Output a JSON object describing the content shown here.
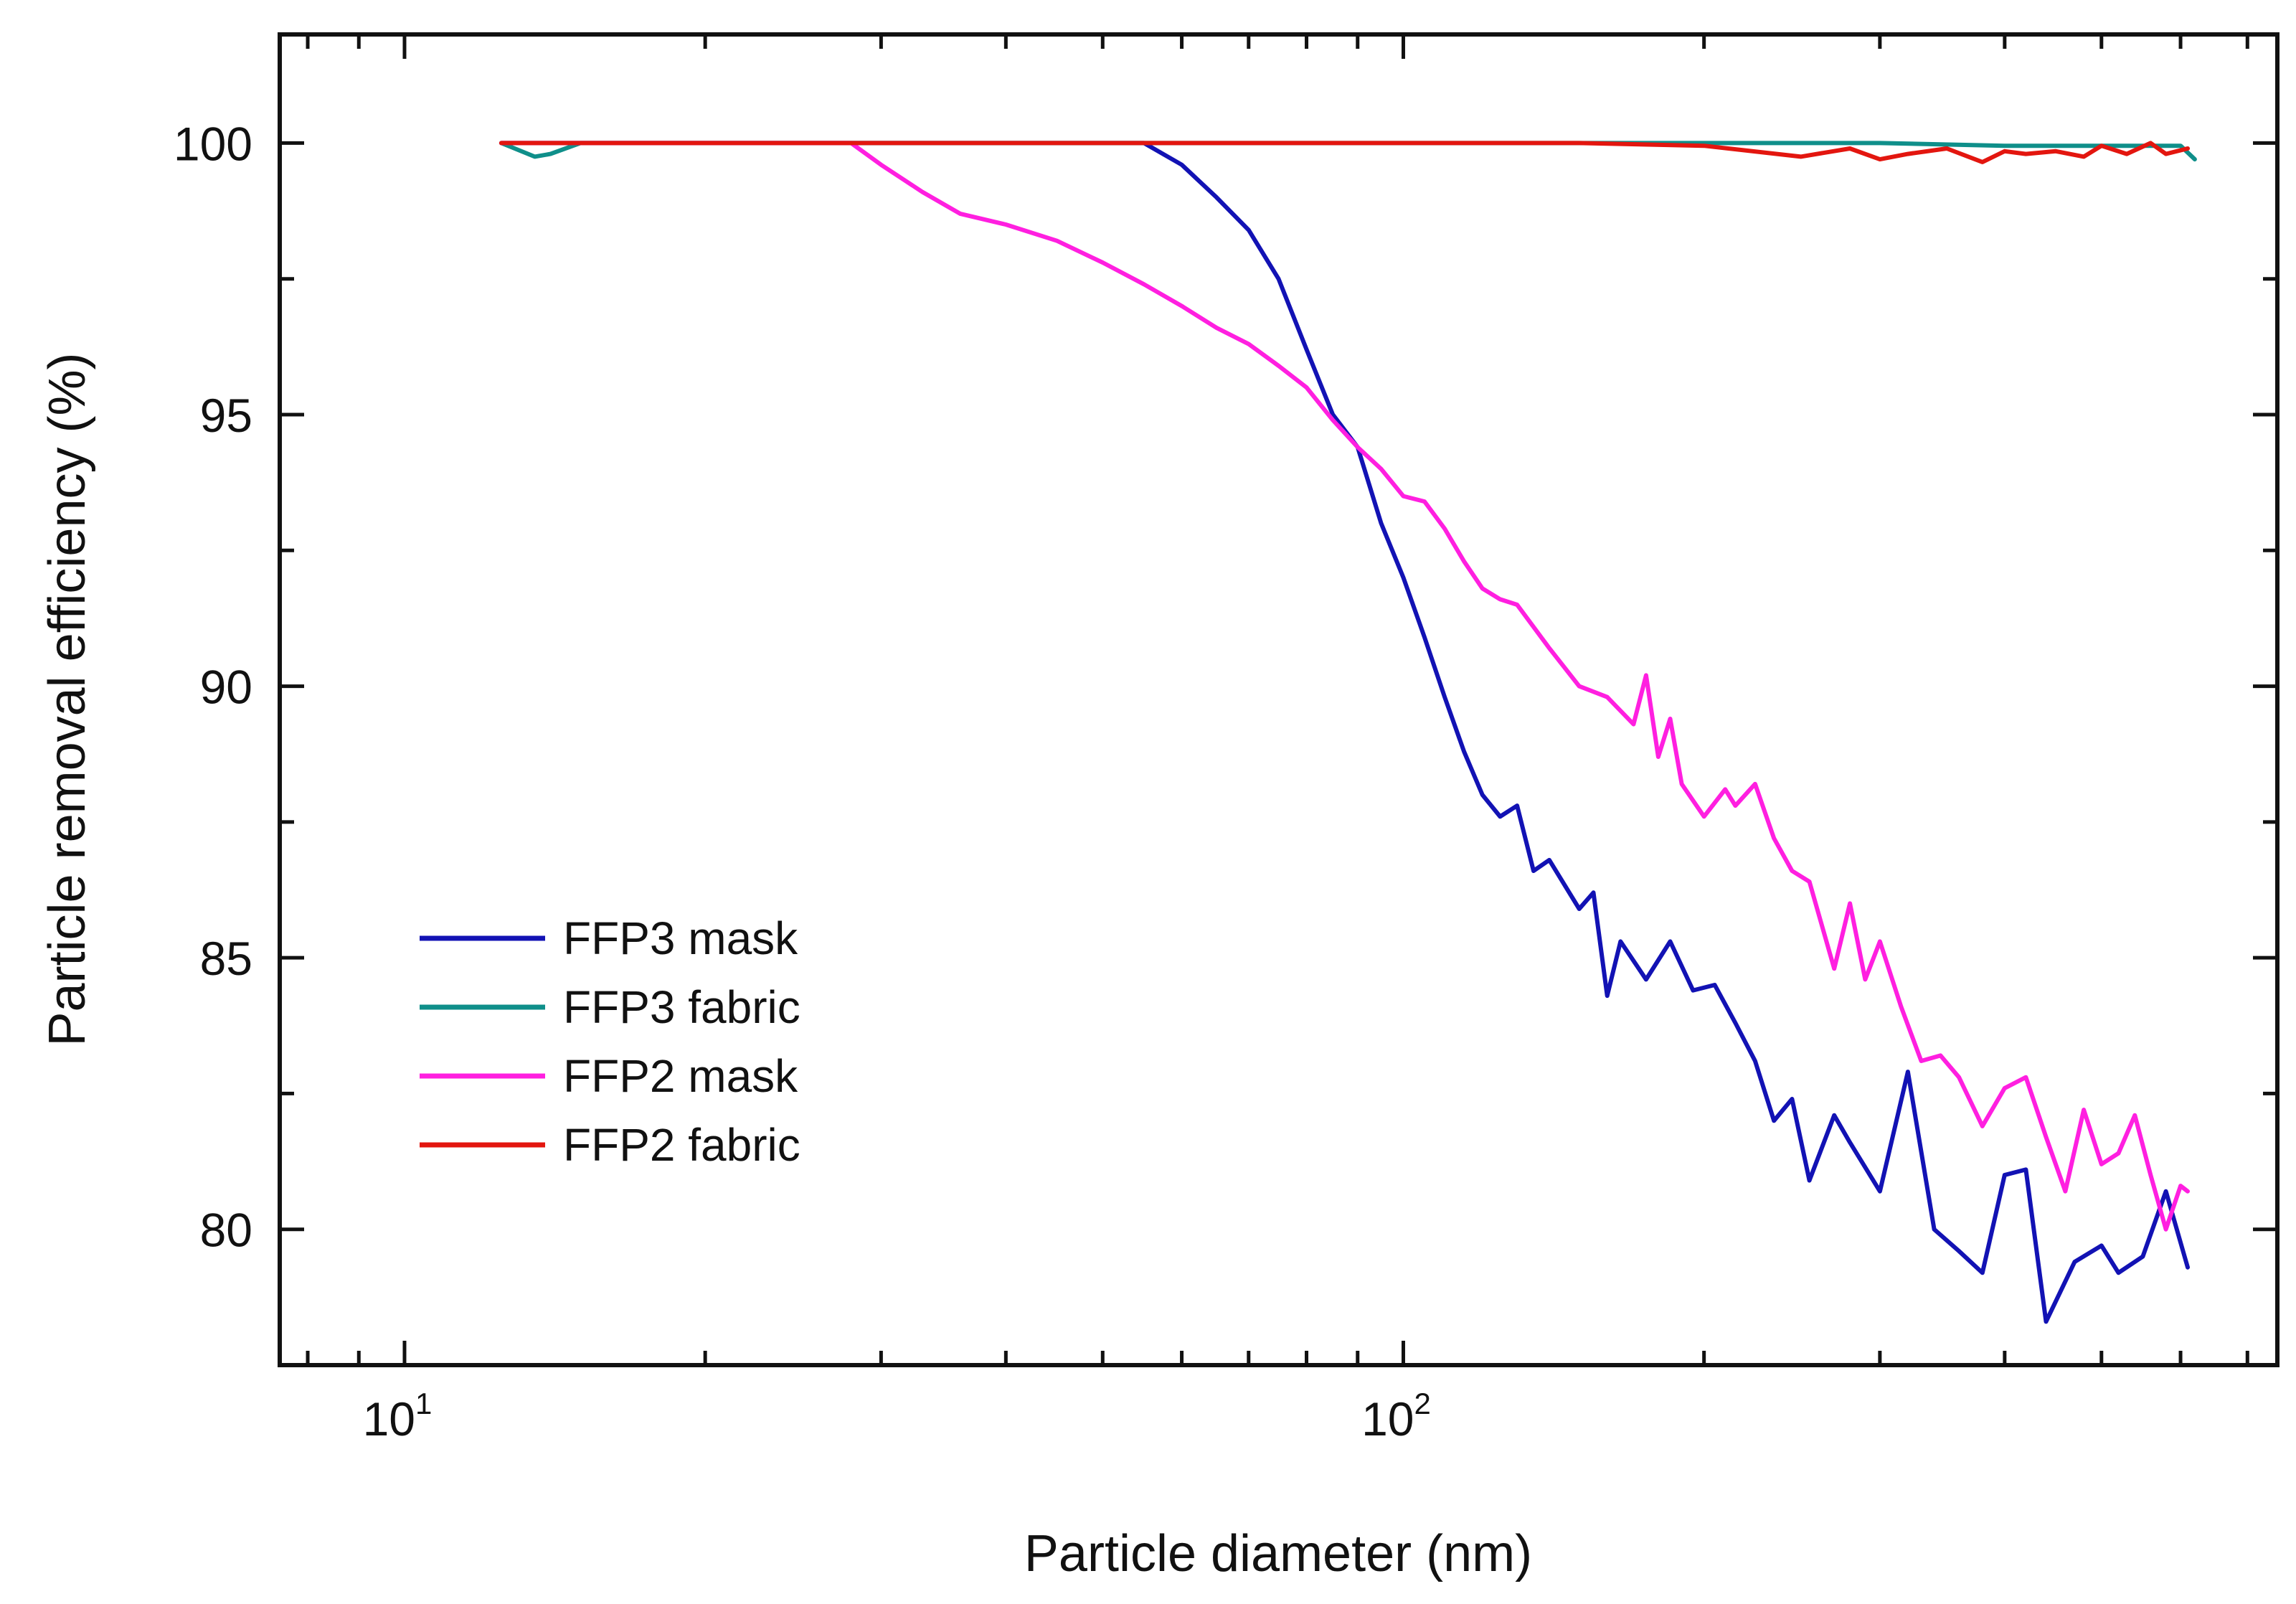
{
  "chart_data": {
    "type": "line",
    "title": "",
    "xlabel": "Particle diameter (nm)",
    "ylabel": "Particle removal efficiency  (%)",
    "xscale": "log",
    "xlim": [
      7.5,
      750
    ],
    "ylim": [
      77.5,
      102
    ],
    "grid": false,
    "legend_position": "lower-left",
    "x_ticks": [
      {
        "value": 10,
        "base": "10",
        "exp": "1"
      },
      {
        "value": 100,
        "base": "10",
        "exp": "2"
      }
    ],
    "y_ticks": [
      {
        "value": 80,
        "label": "80"
      },
      {
        "value": 85,
        "label": "85"
      },
      {
        "value": 90,
        "label": "90"
      },
      {
        "value": 95,
        "label": "95"
      },
      {
        "value": 100,
        "label": "100"
      }
    ],
    "series": [
      {
        "name": "FFP3 mask",
        "color": "#1212b4",
        "x": [
          12.5,
          20,
          30,
          40,
          55,
          60,
          65,
          70,
          75,
          80,
          85,
          90,
          95,
          100,
          105,
          110,
          115,
          120,
          125,
          130,
          135,
          140,
          150,
          155,
          160,
          165,
          175,
          185,
          195,
          205,
          215,
          225,
          235,
          245,
          255,
          270,
          280,
          300,
          320,
          340,
          360,
          380,
          400,
          420,
          440,
          470,
          500,
          520,
          550,
          580,
          610
        ],
        "y": [
          100,
          100,
          100,
          100,
          100,
          99.6,
          99.0,
          98.4,
          97.5,
          96.2,
          95.0,
          94.4,
          93.0,
          92.0,
          90.9,
          89.8,
          88.8,
          88.0,
          87.6,
          87.8,
          86.6,
          86.8,
          85.9,
          86.2,
          84.3,
          85.3,
          84.6,
          85.3,
          84.4,
          84.5,
          83.8,
          83.1,
          82.0,
          82.4,
          80.9,
          82.1,
          81.6,
          80.7,
          82.9,
          80.0,
          79.6,
          79.2,
          81.0,
          81.1,
          78.3,
          79.4,
          79.7,
          79.2,
          79.5,
          80.7,
          79.3
        ]
      },
      {
        "name": "FFP3 fabric",
        "color": "#0f8f8a",
        "x": [
          12.5,
          13.5,
          14,
          15,
          20,
          40,
          100,
          200,
          300,
          400,
          500,
          600,
          620
        ],
        "y": [
          100,
          99.75,
          99.8,
          100,
          100,
          100,
          100,
          100,
          100,
          99.95,
          99.95,
          99.95,
          99.7
        ]
      },
      {
        "name": "FFP2 mask",
        "color": "#ff1fe0",
        "x": [
          12.5,
          28,
          30,
          33,
          36,
          40,
          45,
          50,
          55,
          60,
          65,
          70,
          75,
          80,
          85,
          90,
          95,
          100,
          105,
          110,
          115,
          120,
          125,
          130,
          140,
          150,
          160,
          170,
          175,
          180,
          185,
          190,
          200,
          210,
          215,
          225,
          235,
          245,
          255,
          270,
          280,
          290,
          300,
          315,
          330,
          345,
          360,
          380,
          400,
          420,
          440,
          460,
          480,
          500,
          520,
          540,
          560,
          580,
          600,
          610
        ],
        "y": [
          100,
          100,
          99.6,
          99.1,
          98.7,
          98.5,
          98.2,
          97.8,
          97.4,
          97.0,
          96.6,
          96.3,
          95.9,
          95.5,
          94.9,
          94.4,
          94.0,
          93.5,
          93.4,
          92.9,
          92.3,
          91.8,
          91.6,
          91.5,
          90.7,
          90.0,
          89.8,
          89.3,
          90.2,
          88.7,
          89.4,
          88.2,
          87.6,
          88.1,
          87.8,
          88.2,
          87.2,
          86.6,
          86.4,
          84.8,
          86.0,
          84.6,
          85.3,
          84.1,
          83.1,
          83.2,
          82.8,
          81.9,
          82.6,
          82.8,
          81.7,
          80.7,
          82.2,
          81.2,
          81.4,
          82.1,
          81.0,
          80.0,
          80.8,
          80.7
        ]
      },
      {
        "name": "FFP2 fabric",
        "color": "#e3160f",
        "x": [
          12.5,
          20,
          40,
          80,
          150,
          200,
          250,
          280,
          300,
          320,
          350,
          380,
          400,
          420,
          450,
          480,
          500,
          530,
          560,
          580,
          610
        ],
        "y": [
          100,
          100,
          100,
          100,
          100,
          99.95,
          99.75,
          99.9,
          99.7,
          99.8,
          99.9,
          99.65,
          99.85,
          99.8,
          99.85,
          99.75,
          99.95,
          99.8,
          100,
          99.8,
          99.9
        ]
      }
    ]
  }
}
